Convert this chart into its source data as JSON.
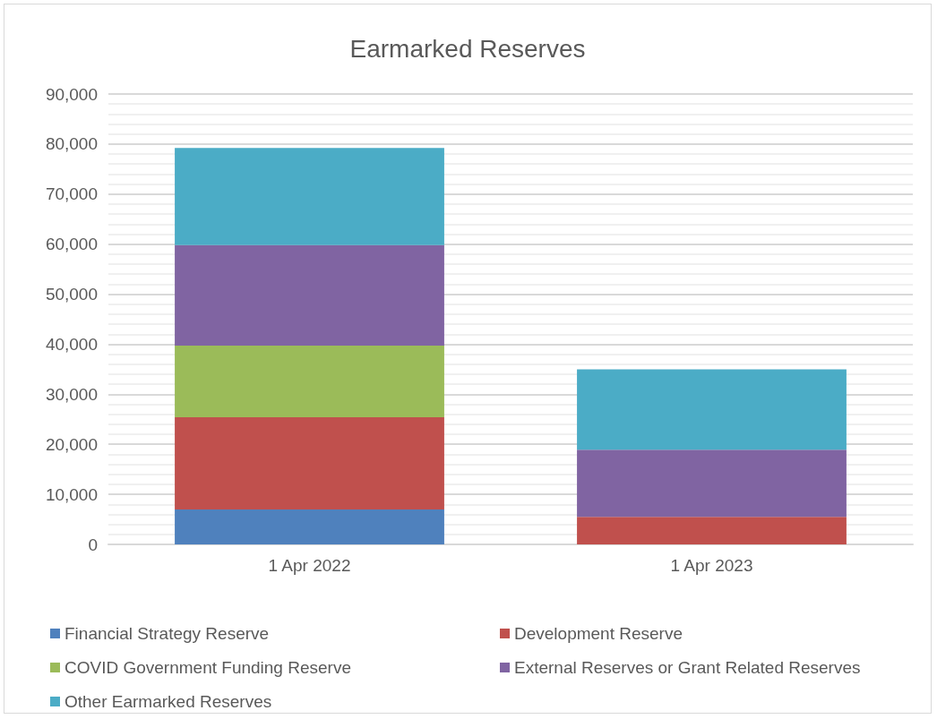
{
  "chart_data": {
    "type": "bar",
    "title": "Earmarked Reserves",
    "categories": [
      "1 Apr 2022",
      "1 Apr 2023"
    ],
    "stacked": true,
    "series": [
      {
        "name": "Financial Strategy Reserve",
        "color": "#4f81bd",
        "values": [
          7000,
          0
        ]
      },
      {
        "name": "Development Reserve",
        "color": "#c0504d",
        "values": [
          18400,
          5500
        ]
      },
      {
        "name": "COVID Government Funding Reserve",
        "color": "#9bbb59",
        "values": [
          14300,
          0
        ]
      },
      {
        "name": "External Reserves or Grant Related Reserves",
        "color": "#8064a2",
        "values": [
          20100,
          13400
        ]
      },
      {
        "name": "Other Earmarked Reserves",
        "color": "#4bacc6",
        "values": [
          19400,
          16100
        ]
      }
    ],
    "ylim": [
      0,
      90000
    ],
    "yticks": [
      0,
      {
        "value": 10000,
        "label": "10,000"
      },
      {
        "value": 20000,
        "label": "20,000"
      },
      {
        "value": 30000,
        "label": "30,000"
      },
      {
        "value": 40000,
        "label": "40,000"
      },
      {
        "value": 50000,
        "label": "50,000"
      },
      {
        "value": 60000,
        "label": "60,000"
      },
      {
        "value": 70000,
        "label": "70,000"
      },
      {
        "value": 80000,
        "label": "80,000"
      },
      {
        "value": 90000,
        "label": "90,000"
      }
    ],
    "grid": "y",
    "legend": "bottom"
  }
}
